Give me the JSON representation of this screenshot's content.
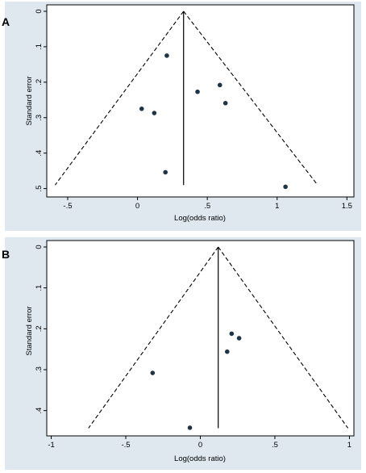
{
  "chart_data": [
    {
      "type": "scatter",
      "panel_label": "A",
      "xlabel": "Log(odds ratio)",
      "ylabel": "Standard error",
      "xlim": [
        -0.65,
        1.55
      ],
      "ylim": [
        0,
        0.51
      ],
      "y_reversed": true,
      "x_ticks": [
        {
          "value": -0.5,
          "label": "-.5"
        },
        {
          "value": 0,
          "label": "0"
        },
        {
          "value": 0.5,
          "label": ".5"
        },
        {
          "value": 1,
          "label": "1"
        },
        {
          "value": 1.5,
          "label": "1.5"
        }
      ],
      "y_ticks": [
        {
          "value": 0,
          "label": "0"
        },
        {
          "value": 0.1,
          "label": ".1"
        },
        {
          "value": 0.2,
          "label": ".2"
        },
        {
          "value": 0.3,
          "label": ".3"
        },
        {
          "value": 0.4,
          "label": ".4"
        },
        {
          "value": 0.5,
          "label": ".5"
        }
      ],
      "pooled_estimate": 0.33,
      "funnel_lines": [
        {
          "x": [
            0.33,
            -0.59
          ],
          "y": [
            0,
            0.49
          ]
        },
        {
          "x": [
            0.33,
            1.29
          ],
          "y": [
            0,
            0.49
          ]
        }
      ],
      "points": [
        {
          "x": 0.21,
          "y": 0.125
        },
        {
          "x": 0.43,
          "y": 0.227
        },
        {
          "x": 0.59,
          "y": 0.208
        },
        {
          "x": 0.63,
          "y": 0.259
        },
        {
          "x": 0.03,
          "y": 0.275
        },
        {
          "x": 0.12,
          "y": 0.287
        },
        {
          "x": 0.2,
          "y": 0.454
        },
        {
          "x": 1.06,
          "y": 0.495
        }
      ],
      "grid": false,
      "background": "#dfe8ef",
      "marker_color": "#1f3447"
    },
    {
      "type": "scatter",
      "panel_label": "B",
      "xlabel": "Log(odds ratio)",
      "ylabel": "Standard error",
      "xlim": [
        -1.03,
        1.03
      ],
      "ylim": [
        0,
        0.45
      ],
      "y_reversed": true,
      "x_ticks": [
        {
          "value": -1,
          "label": "-1"
        },
        {
          "value": -0.5,
          "label": "-.5"
        },
        {
          "value": 0,
          "label": "0"
        },
        {
          "value": 0.5,
          "label": ".5"
        },
        {
          "value": 1,
          "label": "1"
        }
      ],
      "y_ticks": [
        {
          "value": 0,
          "label": "0"
        },
        {
          "value": 0.1,
          "label": ".1"
        },
        {
          "value": 0.2,
          "label": ".2"
        },
        {
          "value": 0.3,
          "label": ".3"
        },
        {
          "value": 0.4,
          "label": ".4"
        }
      ],
      "pooled_estimate": 0.12,
      "funnel_lines": [
        {
          "x": [
            0.12,
            -0.75
          ],
          "y": [
            0,
            0.443
          ]
        },
        {
          "x": [
            0.12,
            0.99
          ],
          "y": [
            0,
            0.443
          ]
        }
      ],
      "points": [
        {
          "x": 0.21,
          "y": 0.212
        },
        {
          "x": 0.26,
          "y": 0.223
        },
        {
          "x": 0.18,
          "y": 0.256
        },
        {
          "x": -0.32,
          "y": 0.308
        },
        {
          "x": -0.07,
          "y": 0.442
        }
      ],
      "grid": false,
      "background": "#dfe8ef",
      "marker_color": "#1f3447"
    }
  ]
}
